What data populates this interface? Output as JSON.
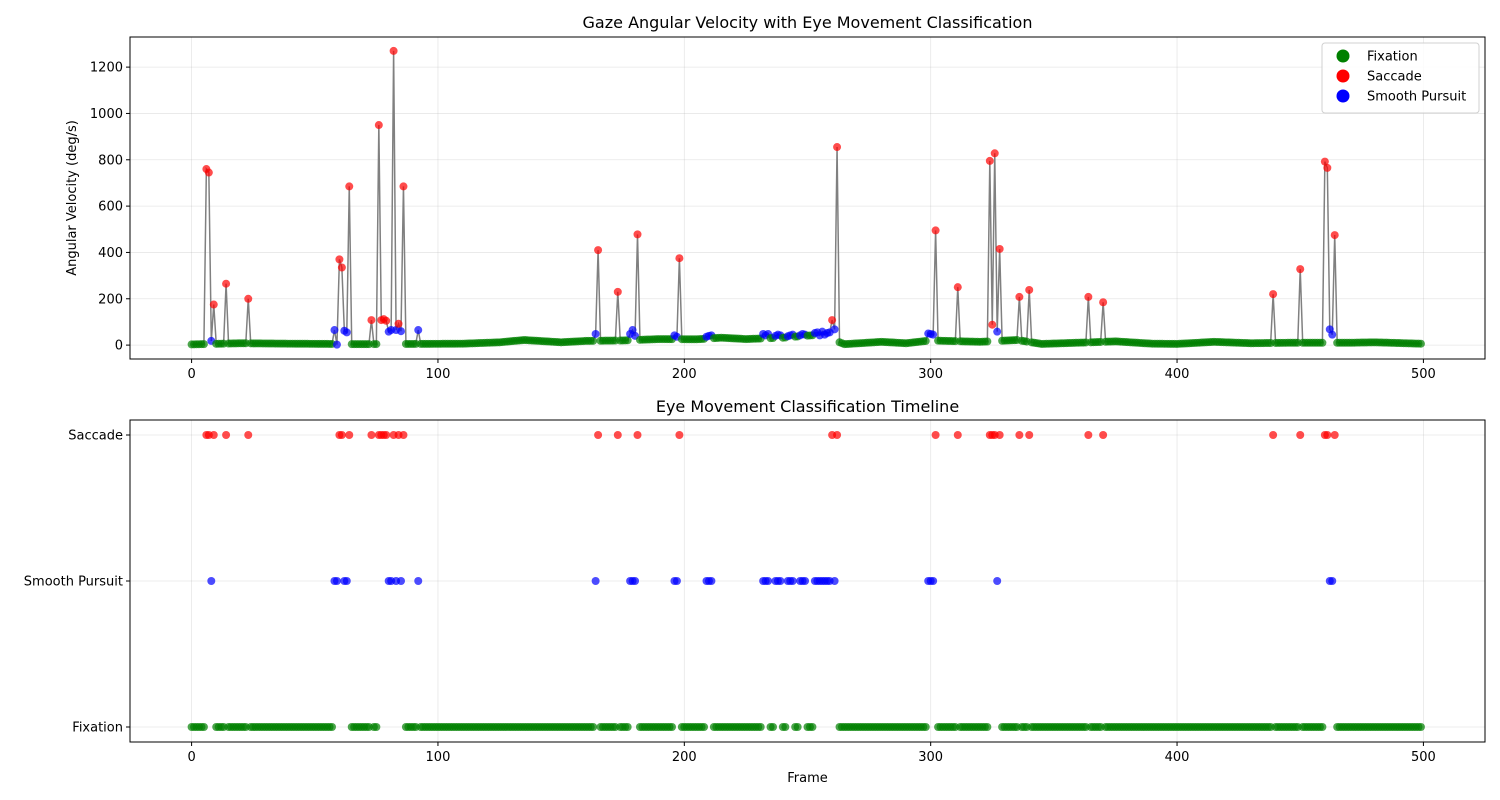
{
  "chart_data": [
    {
      "type": "line",
      "title": "Gaze Angular Velocity with Eye Movement Classification",
      "xlabel": "",
      "ylabel": "Angular Velocity (deg/s)",
      "xlim": [
        -25,
        525
      ],
      "ylim": [
        -60,
        1330
      ],
      "xticks": [
        0,
        100,
        200,
        300,
        400,
        500
      ],
      "yticks": [
        0,
        200,
        400,
        600,
        800,
        1000,
        1200
      ],
      "grid": true,
      "legend": {
        "placement": "top-right",
        "entries": [
          {
            "label": "Fixation",
            "color": "#008000"
          },
          {
            "label": "Saccade",
            "color": "#ff0000"
          },
          {
            "label": "Smooth Pursuit",
            "color": "#0000ff"
          }
        ]
      },
      "line_color": "#808080",
      "x_range": [
        0,
        499
      ],
      "baseline": [
        [
          0,
          3
        ],
        [
          8,
          5
        ],
        [
          20,
          8
        ],
        [
          40,
          6
        ],
        [
          56,
          5
        ],
        [
          66,
          4
        ],
        [
          90,
          5
        ],
        [
          110,
          6
        ],
        [
          125,
          12
        ],
        [
          135,
          22
        ],
        [
          150,
          12
        ],
        [
          160,
          18
        ],
        [
          175,
          20
        ],
        [
          190,
          26
        ],
        [
          205,
          25
        ],
        [
          215,
          32
        ],
        [
          225,
          26
        ],
        [
          240,
          32
        ],
        [
          255,
          45
        ],
        [
          265,
          4
        ],
        [
          280,
          14
        ],
        [
          290,
          8
        ],
        [
          300,
          20
        ],
        [
          320,
          14
        ],
        [
          335,
          22
        ],
        [
          345,
          5
        ],
        [
          365,
          12
        ],
        [
          375,
          16
        ],
        [
          390,
          6
        ],
        [
          400,
          5
        ],
        [
          415,
          14
        ],
        [
          430,
          8
        ],
        [
          445,
          10
        ],
        [
          470,
          10
        ],
        [
          480,
          12
        ],
        [
          499,
          6
        ]
      ],
      "spikes": [
        {
          "x": 6,
          "y": 760
        },
        {
          "x": 7,
          "y": 745
        },
        {
          "x": 9,
          "y": 175
        },
        {
          "x": 14,
          "y": 265
        },
        {
          "x": 23,
          "y": 200
        },
        {
          "x": 60,
          "y": 370
        },
        {
          "x": 61,
          "y": 335
        },
        {
          "x": 64,
          "y": 685
        },
        {
          "x": 73,
          "y": 108
        },
        {
          "x": 76,
          "y": 950
        },
        {
          "x": 77,
          "y": 108
        },
        {
          "x": 78,
          "y": 112
        },
        {
          "x": 79,
          "y": 105
        },
        {
          "x": 82,
          "y": 1270
        },
        {
          "x": 84,
          "y": 92
        },
        {
          "x": 86,
          "y": 685
        },
        {
          "x": 165,
          "y": 410
        },
        {
          "x": 173,
          "y": 230
        },
        {
          "x": 181,
          "y": 478
        },
        {
          "x": 198,
          "y": 375
        },
        {
          "x": 260,
          "y": 108
        },
        {
          "x": 262,
          "y": 855
        },
        {
          "x": 302,
          "y": 495
        },
        {
          "x": 311,
          "y": 250
        },
        {
          "x": 324,
          "y": 795
        },
        {
          "x": 325,
          "y": 88
        },
        {
          "x": 326,
          "y": 828
        },
        {
          "x": 328,
          "y": 415
        },
        {
          "x": 336,
          "y": 208
        },
        {
          "x": 340,
          "y": 238
        },
        {
          "x": 364,
          "y": 208
        },
        {
          "x": 370,
          "y": 185
        },
        {
          "x": 439,
          "y": 220
        },
        {
          "x": 450,
          "y": 328
        },
        {
          "x": 460,
          "y": 792
        },
        {
          "x": 461,
          "y": 765
        },
        {
          "x": 464,
          "y": 475
        }
      ],
      "pursuit_points": [
        {
          "x": 8,
          "y": 18
        },
        {
          "x": 58,
          "y": 65
        },
        {
          "x": 59,
          "y": 2
        },
        {
          "x": 62,
          "y": 62
        },
        {
          "x": 63,
          "y": 55
        },
        {
          "x": 79,
          "y": 55
        },
        {
          "x": 80,
          "y": 58
        },
        {
          "x": 81,
          "y": 65
        },
        {
          "x": 83,
          "y": 65
        },
        {
          "x": 85,
          "y": 60
        },
        {
          "x": 92,
          "y": 65
        },
        {
          "x": 164,
          "y": 48
        },
        {
          "x": 178,
          "y": 48
        },
        {
          "x": 179,
          "y": 65
        },
        {
          "x": 180,
          "y": 40
        },
        {
          "x": 196,
          "y": 42
        },
        {
          "x": 197,
          "y": 36
        },
        {
          "x": 209,
          "y": 36
        },
        {
          "x": 210,
          "y": 40
        },
        {
          "x": 211,
          "y": 42
        },
        {
          "x": 232,
          "y": 48
        },
        {
          "x": 233,
          "y": 42
        },
        {
          "x": 234,
          "y": 48
        },
        {
          "x": 237,
          "y": 40
        },
        {
          "x": 238,
          "y": 45
        },
        {
          "x": 239,
          "y": 42
        },
        {
          "x": 242,
          "y": 38
        },
        {
          "x": 243,
          "y": 42
        },
        {
          "x": 244,
          "y": 45
        },
        {
          "x": 247,
          "y": 42
        },
        {
          "x": 248,
          "y": 48
        },
        {
          "x": 249,
          "y": 45
        },
        {
          "x": 253,
          "y": 52
        },
        {
          "x": 254,
          "y": 55
        },
        {
          "x": 255,
          "y": 42
        },
        {
          "x": 256,
          "y": 58
        },
        {
          "x": 257,
          "y": 45
        },
        {
          "x": 258,
          "y": 52
        },
        {
          "x": 259,
          "y": 55
        },
        {
          "x": 261,
          "y": 68
        },
        {
          "x": 299,
          "y": 50
        },
        {
          "x": 300,
          "y": 48
        },
        {
          "x": 301,
          "y": 45
        },
        {
          "x": 327,
          "y": 58
        },
        {
          "x": 462,
          "y": 68
        },
        {
          "x": 463,
          "y": 45
        }
      ]
    },
    {
      "type": "scatter",
      "title": "Eye Movement Classification Timeline",
      "xlabel": "Frame",
      "ylabel": "",
      "xlim": [
        -25,
        525
      ],
      "xticks": [
        0,
        100,
        200,
        300,
        400,
        500
      ],
      "categories": [
        "Fixation",
        "Smooth Pursuit",
        "Saccade"
      ],
      "grid": true,
      "note_colors": {
        "Fixation": "#008000",
        "Saccade": "#ff0000",
        "Smooth Pursuit": "#0000ff"
      }
    }
  ]
}
